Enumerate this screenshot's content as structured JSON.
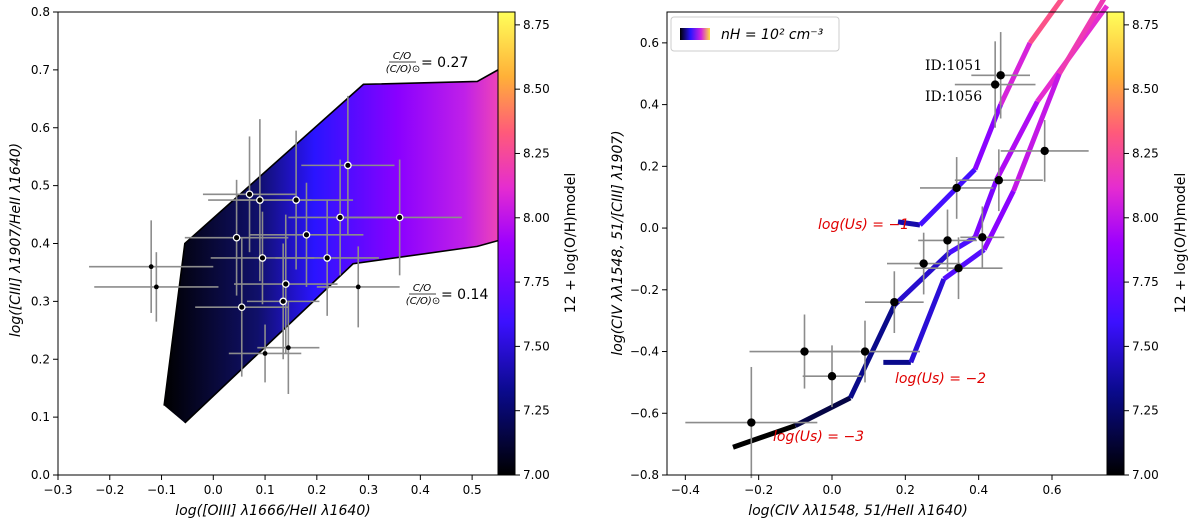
{
  "chart_data": [
    {
      "type": "scatter",
      "panel": "left",
      "xlabel": "log([OIII] λ1666/HeII λ1640)",
      "ylabel": "log([CIII] λ1907/HeII λ1640)",
      "xlim": [
        -0.3,
        0.55
      ],
      "ylim": [
        0.0,
        0.8
      ],
      "xticks": [
        "−0.3",
        "−0.2",
        "−0.1",
        "0.0",
        "0.1",
        "0.2",
        "0.3",
        "0.4",
        "0.5"
      ],
      "yticks": [
        "0.0",
        "0.1",
        "0.2",
        "0.3",
        "0.4",
        "0.5",
        "0.6",
        "0.7",
        "0.8"
      ],
      "model_region": {
        "upper": [
          [
            -0.095,
            0.12
          ],
          [
            -0.055,
            0.4
          ],
          [
            0.29,
            0.675
          ],
          [
            0.51,
            0.68
          ],
          [
            0.55,
            0.7
          ]
        ],
        "lower": [
          [
            -0.055,
            0.09
          ],
          [
            0.27,
            0.365
          ],
          [
            0.51,
            0.395
          ],
          [
            0.55,
            0.405
          ]
        ]
      },
      "annotations": {
        "upper": {
          "text": "= 0.27",
          "frac_num": "C/O",
          "frac_den": "(C/O)⊙"
        },
        "lower": {
          "text": "= 0.14",
          "frac_num": "C/O",
          "frac_den": "(C/O)⊙"
        }
      },
      "points": [
        {
          "x": -0.12,
          "y": 0.36,
          "xerr": 0.12,
          "yerr": 0.08,
          "open": false
        },
        {
          "x": -0.11,
          "y": 0.325,
          "xerr": 0.12,
          "yerr": 0.06,
          "open": false
        },
        {
          "x": 0.045,
          "y": 0.41,
          "xerr": 0.1,
          "yerr": 0.1,
          "open": true
        },
        {
          "x": 0.055,
          "y": 0.29,
          "xerr": 0.09,
          "yerr": 0.12,
          "open": true
        },
        {
          "x": 0.07,
          "y": 0.485,
          "xerr": 0.09,
          "yerr": 0.1,
          "open": true
        },
        {
          "x": 0.09,
          "y": 0.475,
          "xerr": 0.1,
          "yerr": 0.14,
          "open": true
        },
        {
          "x": 0.095,
          "y": 0.375,
          "xerr": 0.1,
          "yerr": 0.08,
          "open": true
        },
        {
          "x": 0.1,
          "y": 0.21,
          "xerr": 0.07,
          "yerr": 0.05,
          "open": false
        },
        {
          "x": 0.135,
          "y": 0.3,
          "xerr": 0.07,
          "yerr": 0.1,
          "open": true
        },
        {
          "x": 0.14,
          "y": 0.33,
          "xerr": 0.1,
          "yerr": 0.12,
          "open": true
        },
        {
          "x": 0.145,
          "y": 0.22,
          "xerr": 0.06,
          "yerr": 0.08,
          "open": false
        },
        {
          "x": 0.16,
          "y": 0.475,
          "xerr": 0.11,
          "yerr": 0.12,
          "open": true
        },
        {
          "x": 0.18,
          "y": 0.415,
          "xerr": 0.11,
          "yerr": 0.09,
          "open": true
        },
        {
          "x": 0.22,
          "y": 0.375,
          "xerr": 0.1,
          "yerr": 0.1,
          "open": true
        },
        {
          "x": 0.245,
          "y": 0.445,
          "xerr": 0.1,
          "yerr": 0.1,
          "open": true
        },
        {
          "x": 0.26,
          "y": 0.535,
          "xerr": 0.09,
          "yerr": 0.12,
          "open": true
        },
        {
          "x": 0.28,
          "y": 0.325,
          "xerr": 0.08,
          "yerr": 0.07,
          "open": false
        },
        {
          "x": 0.36,
          "y": 0.445,
          "xerr": 0.12,
          "yerr": 0.1,
          "open": true
        }
      ]
    },
    {
      "type": "line",
      "panel": "right",
      "xlabel": "log(CIV λλ1548, 51/HeII λ1640)",
      "ylabel": "log(CIV λλ1548, 51/[CIII] λ1907)",
      "xlim": [
        -0.45,
        0.75
      ],
      "ylim": [
        -0.8,
        0.7
      ],
      "xticks": [
        "−0.4",
        "−0.2",
        "0.0",
        "0.2",
        "0.4",
        "0.6"
      ],
      "yticks": [
        "−0.8",
        "−0.6",
        "−0.4",
        "−0.2",
        "0.0",
        "0.2",
        "0.4",
        "0.6"
      ],
      "legend": "n_H = 10^2 cm^-3",
      "legend_text": "nH = 10² cm⁻³",
      "series": [
        {
          "name": "log(Us) = −3",
          "x": [
            -0.27,
            -0.1,
            0.05,
            0.17,
            0.32,
            0.39,
            0.45,
            0.56,
            0.75
          ],
          "y": [
            -0.71,
            -0.64,
            -0.55,
            -0.25,
            -0.08,
            -0.03,
            0.16,
            0.41,
            0.72
          ]
        },
        {
          "name": "log(Us) = −2",
          "x": [
            0.14,
            0.215,
            0.305,
            0.415,
            0.495,
            0.62,
            0.75
          ],
          "y": [
            -0.435,
            -0.435,
            -0.165,
            -0.07,
            0.12,
            0.5,
            0.76
          ]
        },
        {
          "name": "log(Us) = −1",
          "x": [
            0.18,
            0.24,
            0.39,
            0.46,
            0.54,
            0.68
          ],
          "y": [
            0.02,
            0.01,
            0.19,
            0.4,
            0.6,
            0.83
          ]
        }
      ],
      "curve_labels": [
        "log(Us) = −1",
        "log(Us) = −2",
        "log(Us) = −3"
      ],
      "point_labels": [
        "ID:1051",
        "ID:1056"
      ],
      "points": [
        {
          "x": -0.22,
          "y": -0.63,
          "xerr": 0.18,
          "yerr": 0.18
        },
        {
          "x": -0.075,
          "y": -0.4,
          "xerr": 0.15,
          "yerr": 0.12
        },
        {
          "x": 0.0,
          "y": -0.48,
          "xerr": 0.08,
          "yerr": 0.1
        },
        {
          "x": 0.09,
          "y": -0.4,
          "xerr": 0.15,
          "yerr": 0.1
        },
        {
          "x": 0.17,
          "y": -0.24,
          "xerr": 0.08,
          "yerr": 0.1
        },
        {
          "x": 0.25,
          "y": -0.115,
          "xerr": 0.1,
          "yerr": 0.1
        },
        {
          "x": 0.315,
          "y": -0.04,
          "xerr": 0.08,
          "yerr": 0.1
        },
        {
          "x": 0.34,
          "y": 0.13,
          "xerr": 0.1,
          "yerr": 0.1
        },
        {
          "x": 0.345,
          "y": -0.13,
          "xerr": 0.12,
          "yerr": 0.1
        },
        {
          "x": 0.41,
          "y": -0.03,
          "xerr": 0.06,
          "yerr": 0.1
        },
        {
          "x": 0.445,
          "y": 0.465,
          "xerr": 0.11,
          "yerr": 0.14
        },
        {
          "x": 0.455,
          "y": 0.155,
          "xerr": 0.12,
          "yerr": 0.1
        },
        {
          "x": 0.46,
          "y": 0.495,
          "xerr": 0.08,
          "yerr": 0.14
        },
        {
          "x": 0.58,
          "y": 0.25,
          "xerr": 0.12,
          "yerr": 0.1
        }
      ]
    }
  ],
  "colorbar": {
    "label": "12 + log(O/H)model",
    "min": 7.0,
    "max": 8.8,
    "ticks": [
      "7.00",
      "7.25",
      "7.50",
      "7.75",
      "8.00",
      "8.25",
      "8.50",
      "8.75"
    ]
  },
  "colors": {
    "c0": "#000000",
    "c1": "#0a0a8c",
    "c2": "#3c10ff",
    "c3": "#9c00ff",
    "c4": "#e52cd0",
    "c5": "#ff5a7a",
    "c6": "#ffb038",
    "c7": "#ffff5a",
    "error": "#8c8c8c",
    "red": "#e00000"
  }
}
